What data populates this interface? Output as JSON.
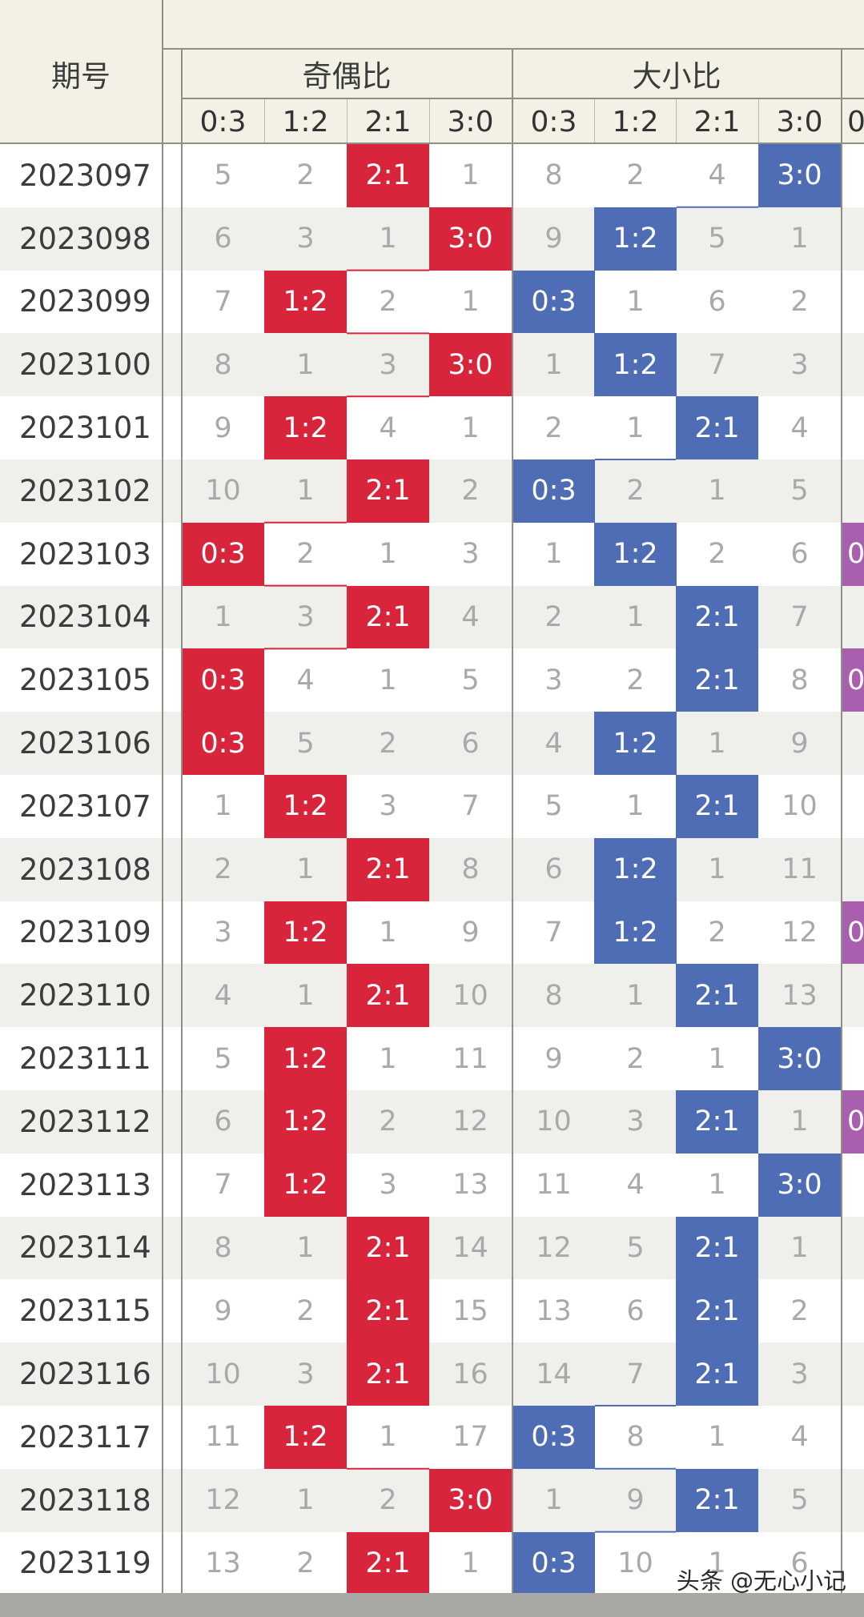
{
  "header": {
    "period_label": "期号",
    "group1_label": "奇偶比",
    "group2_label": "大小比",
    "group1_cols": [
      "0:3",
      "1:2",
      "2:1",
      "3:0"
    ],
    "group2_cols": [
      "0:3",
      "1:2",
      "2:1",
      "3:0"
    ],
    "partial_col_label": "0"
  },
  "colors": {
    "odd_even_hit": "#d8253b",
    "big_small_hit": "#4e6db5",
    "partial_hit": "#a85fae",
    "header_bg": "#f3f1e6",
    "stripe_bg": "#efefec"
  },
  "rows": [
    {
      "period": "2023097",
      "oe": [
        "5",
        "2",
        "2:1",
        "1"
      ],
      "bs": [
        "8",
        "2",
        "4",
        "3:0"
      ],
      "partial": ""
    },
    {
      "period": "2023098",
      "oe": [
        "6",
        "3",
        "1",
        "3:0"
      ],
      "bs": [
        "9",
        "1:2",
        "5",
        "1"
      ],
      "partial": ""
    },
    {
      "period": "2023099",
      "oe": [
        "7",
        "1:2",
        "2",
        "1"
      ],
      "bs": [
        "0:3",
        "1",
        "6",
        "2"
      ],
      "partial": ""
    },
    {
      "period": "2023100",
      "oe": [
        "8",
        "1",
        "3",
        "3:0"
      ],
      "bs": [
        "1",
        "1:2",
        "7",
        "3"
      ],
      "partial": ""
    },
    {
      "period": "2023101",
      "oe": [
        "9",
        "1:2",
        "4",
        "1"
      ],
      "bs": [
        "2",
        "1",
        "2:1",
        "4"
      ],
      "partial": ""
    },
    {
      "period": "2023102",
      "oe": [
        "10",
        "1",
        "2:1",
        "2"
      ],
      "bs": [
        "0:3",
        "2",
        "1",
        "5"
      ],
      "partial": ""
    },
    {
      "period": "2023103",
      "oe": [
        "0:3",
        "2",
        "1",
        "3"
      ],
      "bs": [
        "1",
        "1:2",
        "2",
        "6"
      ],
      "partial": "0"
    },
    {
      "period": "2023104",
      "oe": [
        "1",
        "3",
        "2:1",
        "4"
      ],
      "bs": [
        "2",
        "1",
        "2:1",
        "7"
      ],
      "partial": ""
    },
    {
      "period": "2023105",
      "oe": [
        "0:3",
        "4",
        "1",
        "5"
      ],
      "bs": [
        "3",
        "2",
        "2:1",
        "8"
      ],
      "partial": "0"
    },
    {
      "period": "2023106",
      "oe": [
        "0:3",
        "5",
        "2",
        "6"
      ],
      "bs": [
        "4",
        "1:2",
        "1",
        "9"
      ],
      "partial": ""
    },
    {
      "period": "2023107",
      "oe": [
        "1",
        "1:2",
        "3",
        "7"
      ],
      "bs": [
        "5",
        "1",
        "2:1",
        "10"
      ],
      "partial": ""
    },
    {
      "period": "2023108",
      "oe": [
        "2",
        "1",
        "2:1",
        "8"
      ],
      "bs": [
        "6",
        "1:2",
        "1",
        "11"
      ],
      "partial": ""
    },
    {
      "period": "2023109",
      "oe": [
        "3",
        "1:2",
        "1",
        "9"
      ],
      "bs": [
        "7",
        "1:2",
        "2",
        "12"
      ],
      "partial": "0"
    },
    {
      "period": "2023110",
      "oe": [
        "4",
        "1",
        "2:1",
        "10"
      ],
      "bs": [
        "8",
        "1",
        "2:1",
        "13"
      ],
      "partial": ""
    },
    {
      "period": "2023111",
      "oe": [
        "5",
        "1:2",
        "1",
        "11"
      ],
      "bs": [
        "9",
        "2",
        "1",
        "3:0"
      ],
      "partial": ""
    },
    {
      "period": "2023112",
      "oe": [
        "6",
        "1:2",
        "2",
        "12"
      ],
      "bs": [
        "10",
        "3",
        "2:1",
        "1"
      ],
      "partial": "0"
    },
    {
      "period": "2023113",
      "oe": [
        "7",
        "1:2",
        "3",
        "13"
      ],
      "bs": [
        "11",
        "4",
        "1",
        "3:0"
      ],
      "partial": ""
    },
    {
      "period": "2023114",
      "oe": [
        "8",
        "1",
        "2:1",
        "14"
      ],
      "bs": [
        "12",
        "5",
        "2:1",
        "1"
      ],
      "partial": ""
    },
    {
      "period": "2023115",
      "oe": [
        "9",
        "2",
        "2:1",
        "15"
      ],
      "bs": [
        "13",
        "6",
        "2:1",
        "2"
      ],
      "partial": ""
    },
    {
      "period": "2023116",
      "oe": [
        "10",
        "3",
        "2:1",
        "16"
      ],
      "bs": [
        "14",
        "7",
        "2:1",
        "3"
      ],
      "partial": ""
    },
    {
      "period": "2023117",
      "oe": [
        "11",
        "1:2",
        "1",
        "17"
      ],
      "bs": [
        "0:3",
        "8",
        "1",
        "4"
      ],
      "partial": ""
    },
    {
      "period": "2023118",
      "oe": [
        "12",
        "1",
        "2",
        "3:0"
      ],
      "bs": [
        "1",
        "9",
        "2:1",
        "5"
      ],
      "partial": ""
    },
    {
      "period": "2023119",
      "oe": [
        "13",
        "2",
        "2:1",
        "1"
      ],
      "bs": [
        "0:3",
        "10",
        "1",
        "6"
      ],
      "partial": ""
    }
  ],
  "watermark": "头条 @无心小记"
}
